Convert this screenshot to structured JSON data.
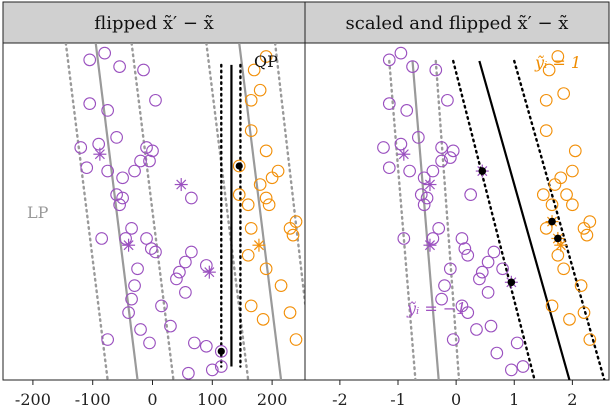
{
  "colors": {
    "purple": "#9a50bf",
    "orange": "#f2900a",
    "lp": "#9a9a9a",
    "qp": "#000000",
    "strip": "#d0d0d0"
  },
  "chart_data": [
    {
      "type": "scatter",
      "title": "flipped x̃′ − x̃",
      "xlim": [
        -250,
        255
      ],
      "ylim": [
        0,
        1
      ],
      "x_ticks": [
        "-200",
        "-100",
        "0",
        "100",
        "200"
      ],
      "x_tick_values": [
        -200,
        -100,
        0,
        100,
        200
      ],
      "labels": {
        "qp": "QP",
        "lp": "LP"
      },
      "lines": [
        {
          "role": "lp-margin",
          "style": "dotted",
          "color": "#9a9a9a",
          "x_top": -145,
          "x_bottom": -75
        },
        {
          "role": "lp-boundary",
          "style": "solid",
          "color": "#9a9a9a",
          "x_top": -95,
          "x_bottom": -25
        },
        {
          "role": "lp-margin",
          "style": "dotted",
          "color": "#9a9a9a",
          "x_top": -35,
          "x_bottom": 35
        },
        {
          "role": "lp-margin",
          "style": "dotted",
          "color": "#9a9a9a",
          "x_top": 90,
          "x_bottom": 160
        },
        {
          "role": "lp-boundary",
          "style": "solid",
          "color": "#9a9a9a",
          "x_top": 145,
          "x_bottom": 215
        },
        {
          "role": "lp-margin",
          "style": "dotted",
          "color": "#9a9a9a",
          "x_top": 205,
          "x_bottom": 270
        },
        {
          "role": "qp-margin",
          "style": "dotted",
          "color": "#000000",
          "x_top": 115,
          "x_bottom": 115
        },
        {
          "role": "qp-boundary",
          "style": "solid",
          "color": "#000000",
          "x_top": 132,
          "x_bottom": 132
        },
        {
          "role": "qp-margin",
          "style": "dotted",
          "color": "#000000",
          "x_top": 147,
          "x_bottom": 147
        }
      ],
      "series": [
        {
          "class": "purple",
          "marker": "circle",
          "points": [
            [
              -105,
              0.95
            ],
            [
              -80,
              0.97
            ],
            [
              -55,
              0.93
            ],
            [
              -15,
              0.92
            ],
            [
              -105,
              0.82
            ],
            [
              -75,
              0.8
            ],
            [
              5,
              0.83
            ],
            [
              -120,
              0.69
            ],
            [
              -90,
              0.7
            ],
            [
              -60,
              0.72
            ],
            [
              -10,
              0.69
            ],
            [
              -110,
              0.63
            ],
            [
              -75,
              0.62
            ],
            [
              -50,
              0.6
            ],
            [
              -30,
              0.62
            ],
            [
              -20,
              0.65
            ],
            [
              -5,
              0.65
            ],
            [
              0,
              0.68
            ],
            [
              -60,
              0.55
            ],
            [
              -55,
              0.52
            ],
            [
              -50,
              0.54
            ],
            [
              65,
              0.54
            ],
            [
              -85,
              0.42
            ],
            [
              -45,
              0.42
            ],
            [
              -35,
              0.45
            ],
            [
              -10,
              0.42
            ],
            [
              -2,
              0.39
            ],
            [
              5,
              0.38
            ],
            [
              55,
              0.35
            ],
            [
              65,
              0.38
            ],
            [
              90,
              0.34
            ],
            [
              45,
              0.32
            ],
            [
              55,
              0.26
            ],
            [
              15,
              0.22
            ],
            [
              40,
              0.3
            ],
            [
              -25,
              0.33
            ],
            [
              -30,
              0.28
            ],
            [
              -35,
              0.24
            ],
            [
              -40,
              0.2
            ],
            [
              -20,
              0.15
            ],
            [
              30,
              0.16
            ],
            [
              -75,
              0.12
            ],
            [
              -5,
              0.11
            ],
            [
              70,
              0.11
            ],
            [
              90,
              0.1
            ],
            [
              60,
              0.02
            ],
            [
              100,
              0.03
            ],
            [
              115,
              0.04
            ]
          ]
        },
        {
          "class": "orange",
          "marker": "circle",
          "points": [
            [
              190,
              0.96
            ],
            [
              170,
              0.92
            ],
            [
              180,
              0.86
            ],
            [
              165,
              0.83
            ],
            [
              165,
              0.74
            ],
            [
              190,
              0.68
            ],
            [
              210,
              0.62
            ],
            [
              200,
              0.6
            ],
            [
              180,
              0.58
            ],
            [
              190,
              0.54
            ],
            [
              195,
              0.52
            ],
            [
              145,
              0.55
            ],
            [
              160,
              0.52
            ],
            [
              240,
              0.47
            ],
            [
              230,
              0.45
            ],
            [
              235,
              0.43
            ],
            [
              165,
              0.45
            ],
            [
              160,
              0.37
            ],
            [
              190,
              0.33
            ],
            [
              165,
              0.22
            ],
            [
              215,
              0.28
            ],
            [
              185,
              0.18
            ],
            [
              230,
              0.2
            ],
            [
              240,
              0.12
            ]
          ]
        },
        {
          "class": "purple",
          "marker": "star",
          "points": [
            [
              -88,
              0.67
            ],
            [
              48,
              0.58
            ],
            [
              -40,
              0.4
            ],
            [
              95,
              0.32
            ]
          ]
        },
        {
          "class": "orange",
          "marker": "star",
          "points": [
            [
              178,
              0.4
            ]
          ]
        },
        {
          "class": "purple",
          "marker": "support-vector",
          "points": [
            [
              115,
              0.085
            ]
          ]
        },
        {
          "class": "orange",
          "marker": "support-vector",
          "points": [
            [
              145,
              0.635
            ]
          ]
        }
      ]
    },
    {
      "type": "scatter",
      "title": "scaled and flipped x̃′ − x̃",
      "xlim": [
        -2.6,
        2.63
      ],
      "ylim": [
        0,
        1
      ],
      "x_ticks": [
        "-2",
        "-1",
        "0",
        "1",
        "2"
      ],
      "x_tick_values": [
        -2,
        -1,
        0,
        1,
        2
      ],
      "labels": {
        "positive": "ỹᵢ = 1",
        "negative": "ỹᵢ = −1"
      },
      "lines": [
        {
          "role": "lp-margin",
          "style": "dotted",
          "color": "#9a9a9a",
          "x_top": -1.15,
          "x_bottom": -0.7
        },
        {
          "role": "lp-boundary",
          "style": "solid",
          "color": "#9a9a9a",
          "x_top": -0.75,
          "x_bottom": -0.3
        },
        {
          "role": "lp-margin",
          "style": "dotted",
          "color": "#9a9a9a",
          "x_top": -0.35,
          "x_bottom": 0.05
        },
        {
          "role": "qp-margin",
          "style": "dotted",
          "color": "#000000",
          "x_top": -0.05,
          "x_bottom": 1.35
        },
        {
          "role": "qp-boundary",
          "style": "solid",
          "color": "#000000",
          "x_top": 0.4,
          "x_bottom": 1.95
        },
        {
          "role": "qp-margin",
          "style": "dotted",
          "color": "#000000",
          "x_top": 1.0,
          "x_bottom": 2.55
        }
      ],
      "series": [
        {
          "class": "purple",
          "marker": "circle",
          "points": [
            [
              -1.15,
              0.95
            ],
            [
              -0.95,
              0.97
            ],
            [
              -0.75,
              0.93
            ],
            [
              -0.35,
              0.92
            ],
            [
              -1.15,
              0.82
            ],
            [
              -0.85,
              0.8
            ],
            [
              -0.15,
              0.83
            ],
            [
              -1.25,
              0.69
            ],
            [
              -0.95,
              0.7
            ],
            [
              -0.65,
              0.72
            ],
            [
              -0.25,
              0.69
            ],
            [
              -1.15,
              0.63
            ],
            [
              -0.8,
              0.62
            ],
            [
              -0.55,
              0.6
            ],
            [
              -0.4,
              0.62
            ],
            [
              -0.25,
              0.65
            ],
            [
              -0.1,
              0.66
            ],
            [
              -0.05,
              0.68
            ],
            [
              -0.6,
              0.55
            ],
            [
              -0.55,
              0.52
            ],
            [
              -0.5,
              0.54
            ],
            [
              0.25,
              0.55
            ],
            [
              -0.9,
              0.42
            ],
            [
              -0.4,
              0.42
            ],
            [
              -0.3,
              0.45
            ],
            [
              0.1,
              0.42
            ],
            [
              0.15,
              0.39
            ],
            [
              0.2,
              0.37
            ],
            [
              0.55,
              0.35
            ],
            [
              0.65,
              0.38
            ],
            [
              0.8,
              0.33
            ],
            [
              0.45,
              0.32
            ],
            [
              0.55,
              0.26
            ],
            [
              0.1,
              0.22
            ],
            [
              0.4,
              0.3
            ],
            [
              -0.1,
              0.33
            ],
            [
              -0.2,
              0.28
            ],
            [
              -0.25,
              0.24
            ],
            [
              0.2,
              0.2
            ],
            [
              0.35,
              0.15
            ],
            [
              0.6,
              0.16
            ],
            [
              -0.05,
              0.12
            ],
            [
              1.05,
              0.11
            ],
            [
              0.7,
              0.08
            ],
            [
              0.95,
              0.03
            ],
            [
              1.15,
              0.04
            ]
          ]
        },
        {
          "class": "orange",
          "marker": "circle",
          "points": [
            [
              1.75,
              0.96
            ],
            [
              1.6,
              0.92
            ],
            [
              1.85,
              0.85
            ],
            [
              1.55,
              0.83
            ],
            [
              1.55,
              0.74
            ],
            [
              2.05,
              0.68
            ],
            [
              2.0,
              0.62
            ],
            [
              1.8,
              0.6
            ],
            [
              1.7,
              0.58
            ],
            [
              1.9,
              0.55
            ],
            [
              2.0,
              0.52
            ],
            [
              1.5,
              0.55
            ],
            [
              1.65,
              0.52
            ],
            [
              2.3,
              0.47
            ],
            [
              2.2,
              0.45
            ],
            [
              2.25,
              0.43
            ],
            [
              1.55,
              0.45
            ],
            [
              1.75,
              0.37
            ],
            [
              1.85,
              0.33
            ],
            [
              1.65,
              0.22
            ],
            [
              2.15,
              0.28
            ],
            [
              1.95,
              0.18
            ],
            [
              2.2,
              0.2
            ],
            [
              2.3,
              0.12
            ]
          ]
        },
        {
          "class": "purple",
          "marker": "star",
          "points": [
            [
              -0.9,
              0.67
            ],
            [
              -0.45,
              0.58
            ],
            [
              -0.45,
              0.4
            ]
          ]
        },
        {
          "class": "orange",
          "marker": "star",
          "points": [
            [
              1.8,
              0.4
            ]
          ]
        },
        {
          "class": "purple",
          "marker": "support-vector",
          "points": [
            [
              0.45,
              0.62
            ],
            [
              0.95,
              0.29
            ]
          ]
        },
        {
          "class": "orange",
          "marker": "support-vector",
          "points": [
            [
              1.65,
              0.47
            ],
            [
              1.75,
              0.42
            ]
          ]
        }
      ]
    }
  ]
}
